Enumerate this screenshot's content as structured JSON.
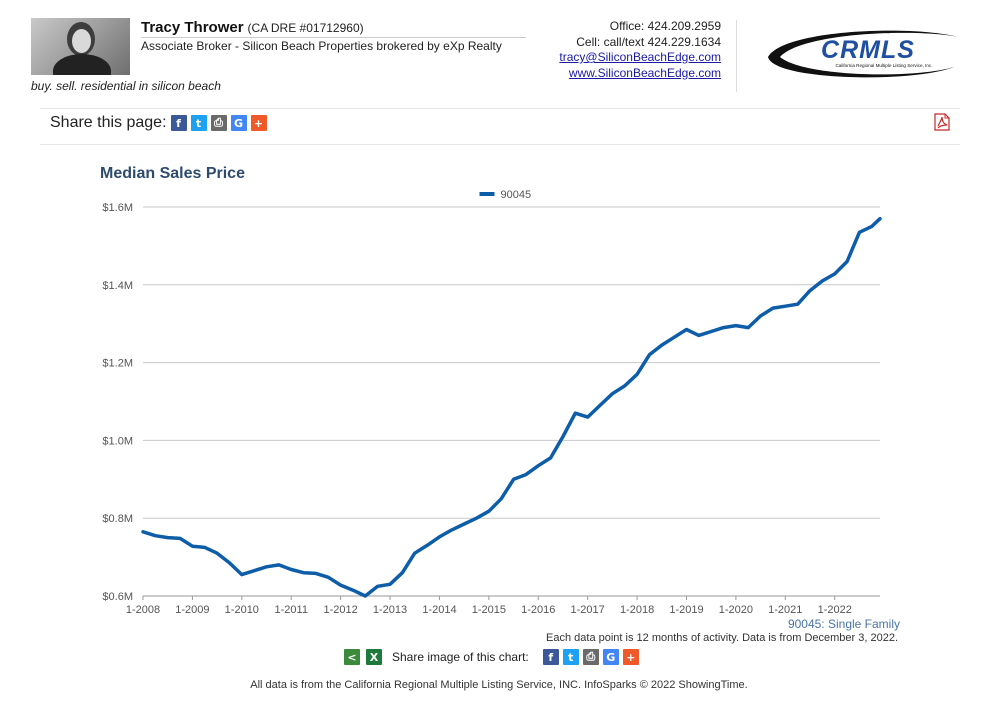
{
  "agent": {
    "name": "Tracy Thrower",
    "dre": "(CA DRE #01712960)",
    "title": "Associate Broker - Silicon Beach Properties brokered by eXp Realty",
    "tagline": "buy. sell. residential in silicon beach",
    "office": "Office: 424.209.2959",
    "cell": "Cell: call/text 424.229.1634",
    "email": "tracy@SiliconBeachEdge.com",
    "website": "www.SiliconBeachEdge.com"
  },
  "logo": {
    "text": "CRMLS",
    "subtext": "California Regional Multiple Listing Service, Inc.",
    "color": "#1f4fa0"
  },
  "share": {
    "page_label": "Share this page:",
    "image_label": "Share image of this chart:"
  },
  "icons": [
    "facebook-icon",
    "twitter-icon",
    "print-icon",
    "google-icon",
    "plus-icon",
    "pdf-icon",
    "share-icon",
    "excel-icon"
  ],
  "chart_data": {
    "type": "line",
    "title": "Median Sales Price",
    "subtitle": "90045: Single Family",
    "note": "Each data point is 12 months of activity. Data is from December 3, 2022.",
    "ylim": [
      0.6,
      1.6
    ],
    "y_ticks": [
      0.6,
      0.8,
      1.0,
      1.2,
      1.4,
      1.6
    ],
    "y_tick_labels": [
      "$0.6M",
      "$0.8M",
      "$1.0M",
      "$1.2M",
      "$1.4M",
      "$1.6M"
    ],
    "x_tick_labels": [
      "1-2008",
      "1-2009",
      "1-2010",
      "1-2011",
      "1-2012",
      "1-2013",
      "1-2014",
      "1-2015",
      "1-2016",
      "1-2017",
      "1-2018",
      "1-2019",
      "1-2020",
      "1-2021",
      "1-2022"
    ],
    "xlim": [
      "2008-01",
      "2022-12"
    ],
    "legend_position": "top",
    "grid": true,
    "series": [
      {
        "name": "90045",
        "color": "#0e5da8",
        "points": [
          [
            "2008-01",
            0.765
          ],
          [
            "2008-04",
            0.755
          ],
          [
            "2008-07",
            0.75
          ],
          [
            "2008-10",
            0.748
          ],
          [
            "2009-01",
            0.728
          ],
          [
            "2009-04",
            0.725
          ],
          [
            "2009-07",
            0.71
          ],
          [
            "2009-10",
            0.685
          ],
          [
            "2010-01",
            0.655
          ],
          [
            "2010-04",
            0.665
          ],
          [
            "2010-07",
            0.675
          ],
          [
            "2010-10",
            0.68
          ],
          [
            "2011-01",
            0.668
          ],
          [
            "2011-04",
            0.66
          ],
          [
            "2011-07",
            0.658
          ],
          [
            "2011-10",
            0.648
          ],
          [
            "2012-01",
            0.628
          ],
          [
            "2012-04",
            0.615
          ],
          [
            "2012-07",
            0.6
          ],
          [
            "2012-10",
            0.625
          ],
          [
            "2013-01",
            0.63
          ],
          [
            "2013-04",
            0.66
          ],
          [
            "2013-07",
            0.71
          ],
          [
            "2013-10",
            0.73
          ],
          [
            "2014-01",
            0.752
          ],
          [
            "2014-04",
            0.77
          ],
          [
            "2014-07",
            0.785
          ],
          [
            "2014-10",
            0.8
          ],
          [
            "2015-01",
            0.818
          ],
          [
            "2015-04",
            0.85
          ],
          [
            "2015-07",
            0.9
          ],
          [
            "2015-10",
            0.912
          ],
          [
            "2016-01",
            0.935
          ],
          [
            "2016-04",
            0.955
          ],
          [
            "2016-07",
            1.01
          ],
          [
            "2016-10",
            1.07
          ],
          [
            "2017-01",
            1.06
          ],
          [
            "2017-04",
            1.09
          ],
          [
            "2017-07",
            1.12
          ],
          [
            "2017-10",
            1.14
          ],
          [
            "2018-01",
            1.17
          ],
          [
            "2018-04",
            1.22
          ],
          [
            "2018-07",
            1.245
          ],
          [
            "2018-10",
            1.265
          ],
          [
            "2019-01",
            1.285
          ],
          [
            "2019-04",
            1.27
          ],
          [
            "2019-07",
            1.28
          ],
          [
            "2019-10",
            1.29
          ],
          [
            "2020-01",
            1.295
          ],
          [
            "2020-04",
            1.29
          ],
          [
            "2020-07",
            1.32
          ],
          [
            "2020-10",
            1.34
          ],
          [
            "2021-01",
            1.345
          ],
          [
            "2021-04",
            1.35
          ],
          [
            "2021-07",
            1.385
          ],
          [
            "2021-10",
            1.41
          ],
          [
            "2022-01",
            1.428
          ],
          [
            "2022-04",
            1.46
          ],
          [
            "2022-07",
            1.535
          ],
          [
            "2022-10",
            1.55
          ],
          [
            "2022-12",
            1.57
          ]
        ]
      }
    ]
  },
  "footer": "All data is from the California Regional Multiple Listing Service, INC. InfoSparks © 2022 ShowingTime."
}
